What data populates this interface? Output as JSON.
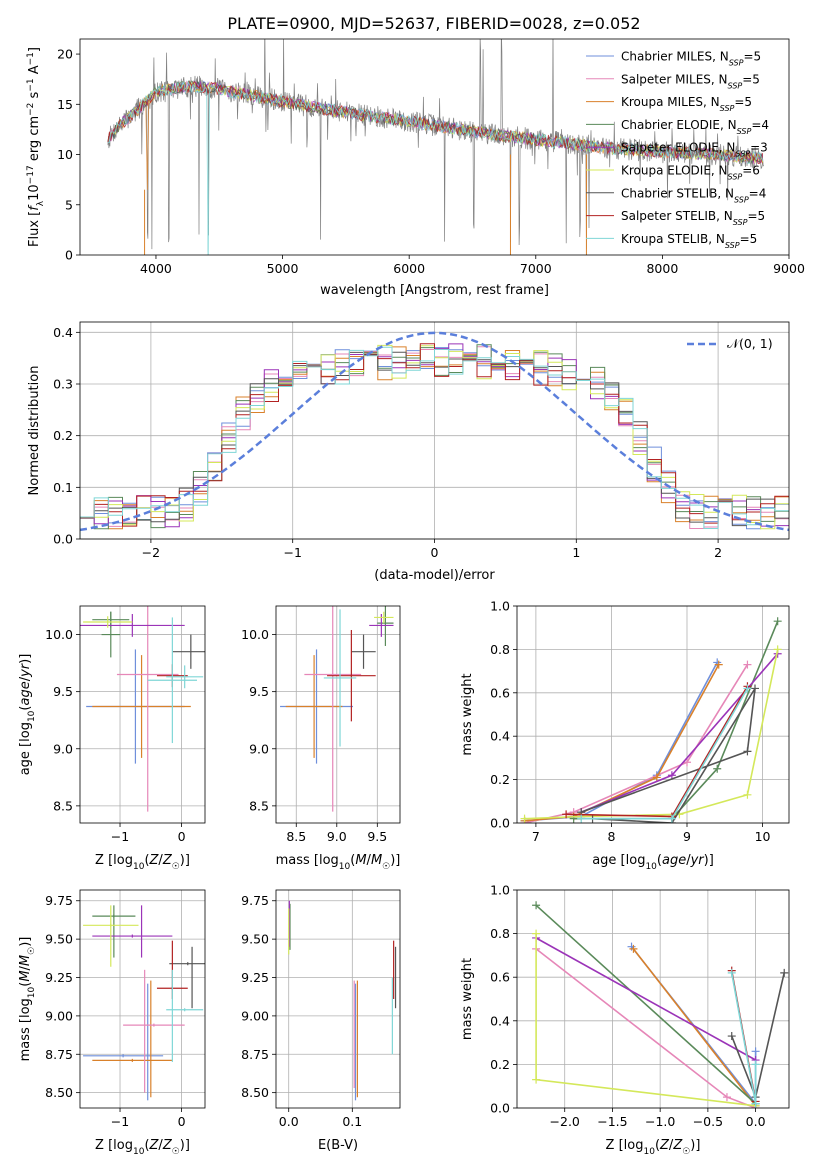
{
  "title": "PLATE=0900, MJD=52637, FIBERID=0028, z=0.052",
  "series_styles": [
    {
      "name": "Chabrier MILES",
      "nssp": "5",
      "color": "#6f8fdb"
    },
    {
      "name": "Salpeter MILES",
      "nssp": "5",
      "color": "#e687b8"
    },
    {
      "name": "Kroupa MILES",
      "nssp": "5",
      "color": "#d9812b"
    },
    {
      "name": "Chabrier ELODIE",
      "nssp": "4",
      "color": "#5a8a5a"
    },
    {
      "name": "Salpeter ELODIE",
      "nssp": "3",
      "color": "#9b34b8"
    },
    {
      "name": "Kroupa ELODIE",
      "nssp": "6",
      "color": "#d4e85a"
    },
    {
      "name": "Chabrier STELIB",
      "nssp": "4",
      "color": "#555555"
    },
    {
      "name": "Salpeter STELIB",
      "nssp": "5",
      "color": "#b22222"
    },
    {
      "name": "Kroupa STELIB",
      "nssp": "5",
      "color": "#7fd6d6"
    }
  ],
  "chart_data": [
    {
      "id": "spectrum",
      "type": "line",
      "xlabel": "wavelength [Angstrom, rest frame]",
      "ylabel": "Flux [f_λ 10^-17 erg cm^-2 s^-1 A^-1]",
      "xlim": [
        3400,
        9000
      ],
      "ylim": [
        0,
        21.5
      ],
      "xticks": [
        4000,
        5000,
        6000,
        7000,
        8000,
        9000
      ],
      "yticks": [
        0,
        5,
        10,
        15,
        20
      ],
      "grid": false,
      "legend": "top-right",
      "data_color": "#808080",
      "continuum": [
        [
          3620,
          11.5
        ],
        [
          3700,
          12.8
        ],
        [
          3800,
          13.8
        ],
        [
          3900,
          15.0
        ],
        [
          4000,
          16.2
        ],
        [
          4100,
          16.5
        ],
        [
          4300,
          16.8
        ],
        [
          4500,
          16.5
        ],
        [
          4700,
          16.0
        ],
        [
          5000,
          15.3
        ],
        [
          5300,
          14.6
        ],
        [
          5600,
          14.0
        ],
        [
          6000,
          13.3
        ],
        [
          6400,
          12.5
        ],
        [
          6800,
          11.8
        ],
        [
          7200,
          11.2
        ],
        [
          7600,
          10.6
        ],
        [
          8000,
          10.3
        ],
        [
          8400,
          10.0
        ],
        [
          8800,
          9.6
        ]
      ]
    },
    {
      "id": "residuals",
      "type": "line",
      "xlabel": "(data-model)/error",
      "ylabel": "Normed distribution",
      "xlim": [
        -2.5,
        2.5
      ],
      "ylim": [
        0,
        0.42
      ],
      "xticks": [
        -2,
        -1,
        0,
        1,
        2
      ],
      "yticks": [
        0.0,
        0.1,
        0.2,
        0.3,
        0.4
      ],
      "grid": true,
      "legend": "top-right",
      "gaussian_label": "𝒩(0, 1)",
      "gaussian_color": "#5b7fdb",
      "hist_bins": [
        -2.5,
        2.5,
        50
      ]
    },
    {
      "id": "age_vs_Z",
      "type": "scatter",
      "xlabel": "Z [log10(Z/Z☉)]",
      "ylabel": "age [log10(age/yr)]",
      "xlim": [
        -1.65,
        0.38
      ],
      "ylim": [
        8.35,
        10.25
      ],
      "xticks": [
        -1,
        0
      ],
      "xticklabels": [
        "−1",
        "0"
      ],
      "yticks": [
        8.5,
        9.0,
        9.5,
        10.0
      ],
      "grid": true,
      "errorbars": [
        {
          "s": 0,
          "x": -0.75,
          "xerr": 0.8,
          "y": 9.37,
          "yerr": 0.5
        },
        {
          "s": 2,
          "x": -0.65,
          "xerr": 0.8,
          "y": 9.37,
          "yerr": 0.45
        },
        {
          "s": 1,
          "x": -0.55,
          "xerr": 0.5,
          "y": 9.65,
          "yerr": 1.2
        },
        {
          "s": 3,
          "x": -1.15,
          "xerr": 0.3,
          "y": 10.13,
          "yerr": 0.07
        },
        {
          "s": 3,
          "x": -1.15,
          "xerr": 0.15,
          "y": 10.0,
          "yerr": 0.2
        },
        {
          "s": 4,
          "x": -0.8,
          "xerr": 0.85,
          "y": 10.08,
          "yerr": 0.1
        },
        {
          "s": 5,
          "x": -1.2,
          "xerr": 0.4,
          "y": 10.11,
          "yerr": 0.05
        },
        {
          "s": 6,
          "x": 0.15,
          "xerr": 0.3,
          "y": 9.85,
          "yerr": 0.15
        },
        {
          "s": 7,
          "x": -0.15,
          "xerr": 0.25,
          "y": 9.64,
          "yerr": 0.1
        },
        {
          "s": 8,
          "x": -0.15,
          "xerr": 0.4,
          "y": 9.6,
          "yerr": 0.55
        },
        {
          "s": 8,
          "x": 0.05,
          "xerr": 0.3,
          "y": 9.63,
          "yerr": 0.1
        }
      ]
    },
    {
      "id": "age_vs_mass",
      "type": "scatter",
      "xlabel": "mass [log10(M/M☉)]",
      "ylabel": "",
      "xlim": [
        8.25,
        9.78
      ],
      "ylim": [
        8.35,
        10.25
      ],
      "xticks": [
        8.5,
        9.0,
        9.5
      ],
      "xticklabels": [
        "8.5",
        "9.0",
        "9.5"
      ],
      "yticks": [
        8.5,
        9.0,
        9.5,
        10.0
      ],
      "grid": true,
      "errorbars": [
        {
          "s": 0,
          "x": 8.75,
          "xerr": 0.45,
          "y": 9.37,
          "yerr": 0.5
        },
        {
          "s": 2,
          "x": 8.72,
          "xerr": 0.35,
          "y": 9.37,
          "yerr": 0.45
        },
        {
          "s": 1,
          "x": 8.95,
          "xerr": 0.35,
          "y": 9.65,
          "yerr": 1.2
        },
        {
          "s": 3,
          "x": 9.6,
          "xerr": 0.1,
          "y": 10.1,
          "yerr": 0.2
        },
        {
          "s": 4,
          "x": 9.55,
          "xerr": 0.15,
          "y": 10.08,
          "yerr": 0.1
        },
        {
          "s": 5,
          "x": 9.58,
          "xerr": 0.12,
          "y": 10.15,
          "yerr": 0.05
        },
        {
          "s": 6,
          "x": 9.33,
          "xerr": 0.15,
          "y": 9.85,
          "yerr": 0.15
        },
        {
          "s": 7,
          "x": 9.18,
          "xerr": 0.3,
          "y": 9.64,
          "yerr": 0.4
        },
        {
          "s": 8,
          "x": 9.04,
          "xerr": 0.2,
          "y": 9.62,
          "yerr": 0.6
        }
      ]
    },
    {
      "id": "weight_vs_age",
      "type": "line",
      "xlabel": "age [log10(age/yr)]",
      "ylabel": "mass weight",
      "xlim": [
        6.75,
        10.35
      ],
      "ylim": [
        0,
        1.0
      ],
      "xticks": [
        7,
        8,
        9,
        10
      ],
      "xticklabels": [
        "7",
        "8",
        "9",
        "10"
      ],
      "yticks": [
        0.0,
        0.2,
        0.4,
        0.6,
        0.8,
        1.0
      ],
      "grid": true,
      "series": [
        {
          "s": 0,
          "points": [
            [
              6.85,
              0.01
            ],
            [
              7.6,
              0.03
            ],
            [
              8.6,
              0.22
            ],
            [
              9.4,
              0.74
            ]
          ]
        },
        {
          "s": 1,
          "points": [
            [
              6.85,
              0.0
            ],
            [
              7.5,
              0.05
            ],
            [
              9.0,
              0.28
            ],
            [
              9.8,
              0.73
            ]
          ]
        },
        {
          "s": 2,
          "points": [
            [
              6.85,
              0.01
            ],
            [
              7.5,
              0.03
            ],
            [
              8.6,
              0.21
            ],
            [
              9.42,
              0.73
            ]
          ]
        },
        {
          "s": 3,
          "points": [
            [
              7.5,
              0.02
            ],
            [
              8.8,
              0.02
            ],
            [
              9.4,
              0.25
            ],
            [
              10.2,
              0.93
            ]
          ]
        },
        {
          "s": 4,
          "points": [
            [
              7.6,
              0.05
            ],
            [
              8.8,
              0.22
            ],
            [
              10.2,
              0.78
            ]
          ]
        },
        {
          "s": 5,
          "points": [
            [
              6.85,
              0.02
            ],
            [
              7.6,
              0.03
            ],
            [
              8.9,
              0.04
            ],
            [
              9.8,
              0.13
            ],
            [
              10.2,
              0.8
            ]
          ]
        },
        {
          "s": 6,
          "points": [
            [
              7.6,
              0.05
            ],
            [
              9.8,
              0.33
            ],
            [
              9.9,
              0.62
            ],
            [
              8.8,
              0.0
            ],
            [
              7.75,
              0.02
            ]
          ]
        },
        {
          "s": 7,
          "points": [
            [
              7.4,
              0.04
            ],
            [
              8.8,
              0.03
            ],
            [
              9.8,
              0.63
            ]
          ]
        },
        {
          "s": 8,
          "points": [
            [
              7.6,
              0.02
            ],
            [
              8.8,
              0.02
            ],
            [
              9.8,
              0.62
            ]
          ]
        }
      ]
    },
    {
      "id": "mass_vs_Z",
      "type": "scatter",
      "xlabel": "Z [log10(Z/Z☉)]",
      "ylabel": "mass [log10(M/M☉)]",
      "xlim": [
        -1.65,
        0.38
      ],
      "ylim": [
        8.4,
        9.82
      ],
      "xticks": [
        -1,
        0
      ],
      "xticklabels": [
        "−1",
        "0"
      ],
      "yticks": [
        8.5,
        8.75,
        9.0,
        9.25,
        9.5,
        9.75
      ],
      "grid": true,
      "errorbars": [
        {
          "s": 0,
          "x": -0.95,
          "xerr": 0.65,
          "y": 8.74,
          "yerr": 0.01
        },
        {
          "s": 0,
          "x": -0.55,
          "xerr": 0.0,
          "y": 8.83,
          "yerr": 0.38
        },
        {
          "s": 2,
          "x": -0.8,
          "xerr": 0.65,
          "y": 8.71,
          "yerr": 0.01
        },
        {
          "s": 2,
          "x": -0.5,
          "xerr": 0.0,
          "y": 8.85,
          "yerr": 0.38
        },
        {
          "s": 1,
          "x": -0.45,
          "xerr": 0.5,
          "y": 8.94,
          "yerr": 0.01
        },
        {
          "s": 1,
          "x": -0.6,
          "xerr": 0.0,
          "y": 8.9,
          "yerr": 0.4
        },
        {
          "s": 3,
          "x": -1.1,
          "xerr": 0.35,
          "y": 9.65,
          "yerr": 0.01
        },
        {
          "s": 3,
          "x": -1.1,
          "xerr": 0.0,
          "y": 9.55,
          "yerr": 0.17
        },
        {
          "s": 4,
          "x": -0.8,
          "xerr": 0.65,
          "y": 9.52,
          "yerr": 0.01
        },
        {
          "s": 4,
          "x": -0.65,
          "xerr": 0.0,
          "y": 9.55,
          "yerr": 0.17
        },
        {
          "s": 5,
          "x": -1.15,
          "xerr": 0.45,
          "y": 9.59,
          "yerr": 0.01
        },
        {
          "s": 5,
          "x": -1.15,
          "xerr": 0.0,
          "y": 9.52,
          "yerr": 0.2
        },
        {
          "s": 6,
          "x": 0.1,
          "xerr": 0.3,
          "y": 9.34,
          "yerr": 0.01
        },
        {
          "s": 6,
          "x": 0.17,
          "xerr": 0.0,
          "y": 9.25,
          "yerr": 0.2
        },
        {
          "s": 7,
          "x": -0.15,
          "xerr": 0.25,
          "y": 9.18,
          "yerr": 0.01
        },
        {
          "s": 7,
          "x": -0.15,
          "xerr": 0.0,
          "y": 9.3,
          "yerr": 0.19
        },
        {
          "s": 8,
          "x": 0.05,
          "xerr": 0.3,
          "y": 9.04,
          "yerr": 0.01
        },
        {
          "s": 8,
          "x": -0.15,
          "xerr": 0.0,
          "y": 9.0,
          "yerr": 0.3
        }
      ]
    },
    {
      "id": "mass_vs_ebv",
      "type": "scatter",
      "xlabel": "E(B-V)",
      "ylabel": "",
      "xlim": [
        -0.02,
        0.175
      ],
      "ylim": [
        8.4,
        9.82
      ],
      "xticks": [
        0.0,
        0.1
      ],
      "xticklabels": [
        "0.0",
        "0.1"
      ],
      "yticks": [
        8.5,
        8.75,
        9.0,
        9.25,
        9.5,
        9.75
      ],
      "grid": true,
      "errorbars": [
        {
          "s": 0,
          "x": 0.105,
          "xerr": 0.0,
          "y": 8.83,
          "yerr": 0.38
        },
        {
          "s": 1,
          "x": 0.103,
          "xerr": 0.0,
          "y": 8.88,
          "yerr": 0.35
        },
        {
          "s": 2,
          "x": 0.108,
          "xerr": 0.0,
          "y": 8.85,
          "yerr": 0.38
        },
        {
          "s": 3,
          "x": 0.002,
          "xerr": 0.0,
          "y": 9.58,
          "yerr": 0.15
        },
        {
          "s": 4,
          "x": 0.001,
          "xerr": 0.0,
          "y": 9.6,
          "yerr": 0.15
        },
        {
          "s": 5,
          "x": 0.0,
          "xerr": 0.0,
          "y": 9.55,
          "yerr": 0.15
        },
        {
          "s": 6,
          "x": 0.168,
          "xerr": 0.0,
          "y": 9.25,
          "yerr": 0.2
        },
        {
          "s": 7,
          "x": 0.165,
          "xerr": 0.0,
          "y": 9.3,
          "yerr": 0.19
        },
        {
          "s": 8,
          "x": 0.163,
          "xerr": 0.0,
          "y": 9.0,
          "yerr": 0.25
        }
      ]
    },
    {
      "id": "weight_vs_Z",
      "type": "line",
      "xlabel": "Z [log10(Z/Z☉)]",
      "ylabel": "mass weight",
      "xlim": [
        -2.5,
        0.35
      ],
      "ylim": [
        0,
        1.0
      ],
      "xticks": [
        -2.0,
        -1.5,
        -1.0,
        -0.5,
        0.0
      ],
      "xticklabels": [
        "−2.0",
        "−1.5",
        "−1.0",
        "−0.5",
        "0.0"
      ],
      "yticks": [
        0.0,
        0.2,
        0.4,
        0.6,
        0.8,
        1.0
      ],
      "grid": true,
      "series": [
        {
          "s": 0,
          "points": [
            [
              -1.3,
              0.74
            ],
            [
              0.0,
              0.02
            ],
            [
              0.0,
              0.26
            ]
          ]
        },
        {
          "s": 1,
          "points": [
            [
              -2.3,
              0.73
            ],
            [
              -0.3,
              0.05
            ],
            [
              0.0,
              0.0
            ]
          ]
        },
        {
          "s": 2,
          "points": [
            [
              -1.28,
              0.73
            ],
            [
              0.0,
              0.01
            ]
          ]
        },
        {
          "s": 3,
          "points": [
            [
              -2.3,
              0.93
            ],
            [
              0.0,
              0.02
            ]
          ]
        },
        {
          "s": 4,
          "points": [
            [
              -2.3,
              0.78
            ],
            [
              0.0,
              0.22
            ]
          ]
        },
        {
          "s": 5,
          "points": [
            [
              -2.3,
              0.8
            ],
            [
              -2.3,
              0.13
            ],
            [
              0.0,
              0.01
            ]
          ]
        },
        {
          "s": 6,
          "points": [
            [
              -0.25,
              0.33
            ],
            [
              0.0,
              0.05
            ],
            [
              0.3,
              0.62
            ]
          ]
        },
        {
          "s": 7,
          "points": [
            [
              -0.25,
              0.63
            ],
            [
              0.0,
              0.03
            ]
          ]
        },
        {
          "s": 8,
          "points": [
            [
              -0.25,
              0.62
            ],
            [
              0.0,
              0.02
            ],
            [
              0.0,
              0.2
            ]
          ]
        }
      ]
    }
  ]
}
